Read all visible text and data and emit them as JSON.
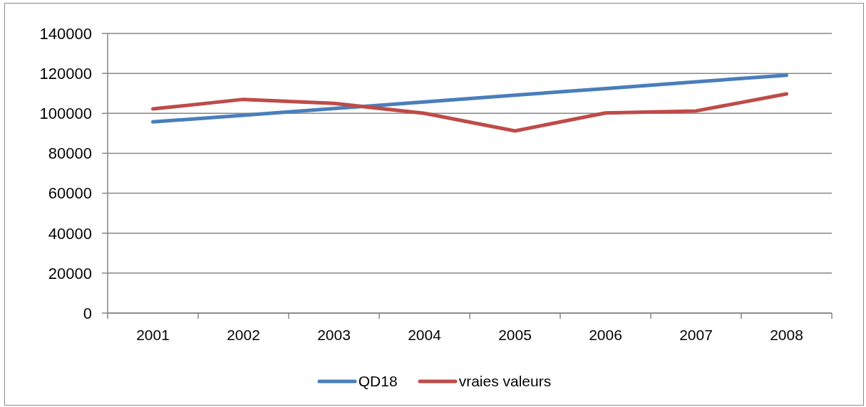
{
  "chart_data": {
    "type": "line",
    "categories": [
      "2001",
      "2002",
      "2003",
      "2004",
      "2005",
      "2006",
      "2007",
      "2008"
    ],
    "series": [
      {
        "name": "QD18",
        "color": "#4a7ebb",
        "values": [
          95700,
          99000,
          102400,
          105700,
          109100,
          112400,
          115800,
          119100
        ]
      },
      {
        "name": "vraies valeurs",
        "color": "#be4b48",
        "values": [
          102200,
          107000,
          105000,
          100000,
          91200,
          100200,
          101200,
          109700
        ]
      }
    ],
    "ylim": [
      0,
      140000
    ],
    "yticks": [
      0,
      20000,
      40000,
      60000,
      80000,
      100000,
      120000,
      140000
    ],
    "grid": "y",
    "legend": "bottom",
    "line_style": "solid"
  }
}
